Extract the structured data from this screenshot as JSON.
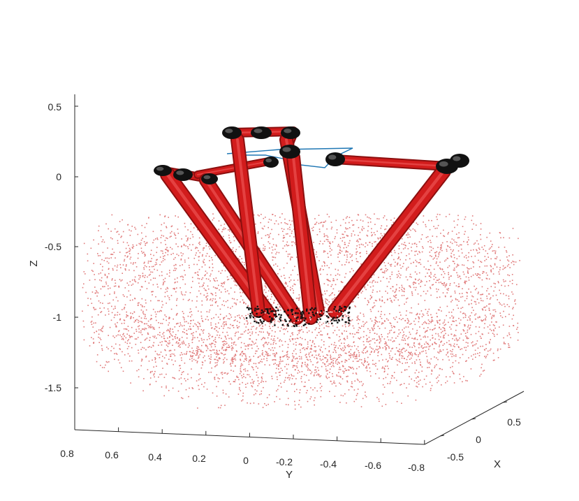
{
  "chart_data": {
    "type": "scatter",
    "view": "3d",
    "title": "",
    "xlabel": "X",
    "ylabel": "Y",
    "zlabel": "Z",
    "xlim": [
      -0.75,
      0.75
    ],
    "ylim": [
      -0.8,
      0.8
    ],
    "zlim": [
      -1.8,
      0.6
    ],
    "x_ticks": [
      "-0.5",
      "0",
      "0.5"
    ],
    "y_ticks": [
      "0.8",
      "0.6",
      "0.4",
      "0.2",
      "0",
      "-0.2",
      "-0.4",
      "-0.6",
      "-0.8"
    ],
    "z_ticks": [
      "0.5",
      "0",
      "-0.5",
      "-1",
      "-1.5"
    ],
    "grid": false,
    "colors": {
      "workspace_points": "#e07a7a",
      "robot_links": "#d91e1e",
      "robot_joints": "#111111",
      "end_effector_path": "#1f77b4",
      "axes": "#262626"
    },
    "series": [
      {
        "marker": "dot",
        "color": "#e07a7a",
        "description_values": {
          "shape": "workspace bowl",
          "z_center": -1.25,
          "radius_max": 0.75
        }
      },
      {
        "marker": "line",
        "color": "#d91e1e",
        "description_values": {
          "base_joints_z": 0.1,
          "platform_z": -0.95
        }
      },
      {
        "marker": "line",
        "color": "#1f77b4"
      }
    ]
  }
}
